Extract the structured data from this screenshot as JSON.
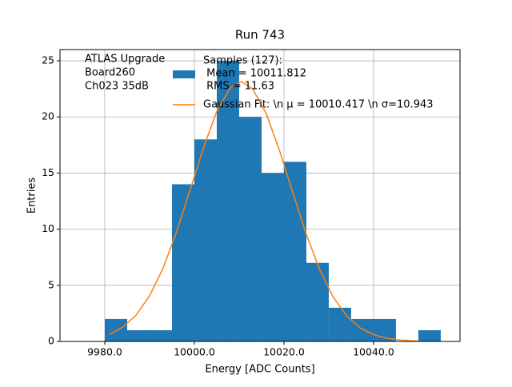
{
  "chart_data": {
    "type": "histogram",
    "title": "Run 743",
    "xlabel": "Energy [ADC Counts]",
    "ylabel": "Entries",
    "annotation": [
      "ATLAS Upgrade",
      " Board260",
      " Ch023 35dB"
    ],
    "bins": [
      9980,
      9985,
      9990,
      9995,
      10000,
      10005,
      10010,
      10015,
      10020,
      10025,
      10030,
      10035,
      10040,
      10045,
      10050,
      10055
    ],
    "counts": [
      2,
      1,
      1,
      14,
      18,
      25,
      20,
      15,
      16,
      7,
      3,
      2,
      2,
      0,
      1
    ],
    "name": [
      "Samples (127):",
      " Mean = 10011.812",
      " RMS = 11.63"
    ],
    "color": "#1f77b4",
    "fit": {
      "name": "Gaussian Fit: \\n μ = 10010.417 \\n σ=10.943",
      "color": "#ff7f0e",
      "x": [
        9981,
        9984,
        9987,
        9990,
        9993,
        9996,
        9999,
        10002,
        10005,
        10008,
        10010.417,
        10013,
        10016,
        10019,
        10022,
        10025,
        10028,
        10031,
        10034,
        10037,
        10040,
        10043,
        10046,
        10050
      ],
      "values": [
        0.62,
        1.26,
        2.35,
        4.06,
        6.52,
        9.72,
        13.44,
        17.22,
        20.48,
        22.59,
        23.15,
        22.51,
        20.33,
        17.02,
        13.22,
        9.53,
        6.37,
        3.95,
        2.27,
        1.21,
        0.6,
        0.28,
        0.12,
        0.03
      ]
    },
    "xlim": [
      9970,
      10059.3
    ],
    "ylim": [
      0,
      26
    ],
    "xticks": [
      {
        "value": 9980,
        "label": "9980.0"
      },
      {
        "value": 10000,
        "label": "10000.0"
      },
      {
        "value": 10020,
        "label": "10020.0"
      },
      {
        "value": 10040,
        "label": "10040.0"
      }
    ],
    "yticks": [
      0,
      5,
      10,
      15,
      20,
      25
    ],
    "grid": true
  }
}
